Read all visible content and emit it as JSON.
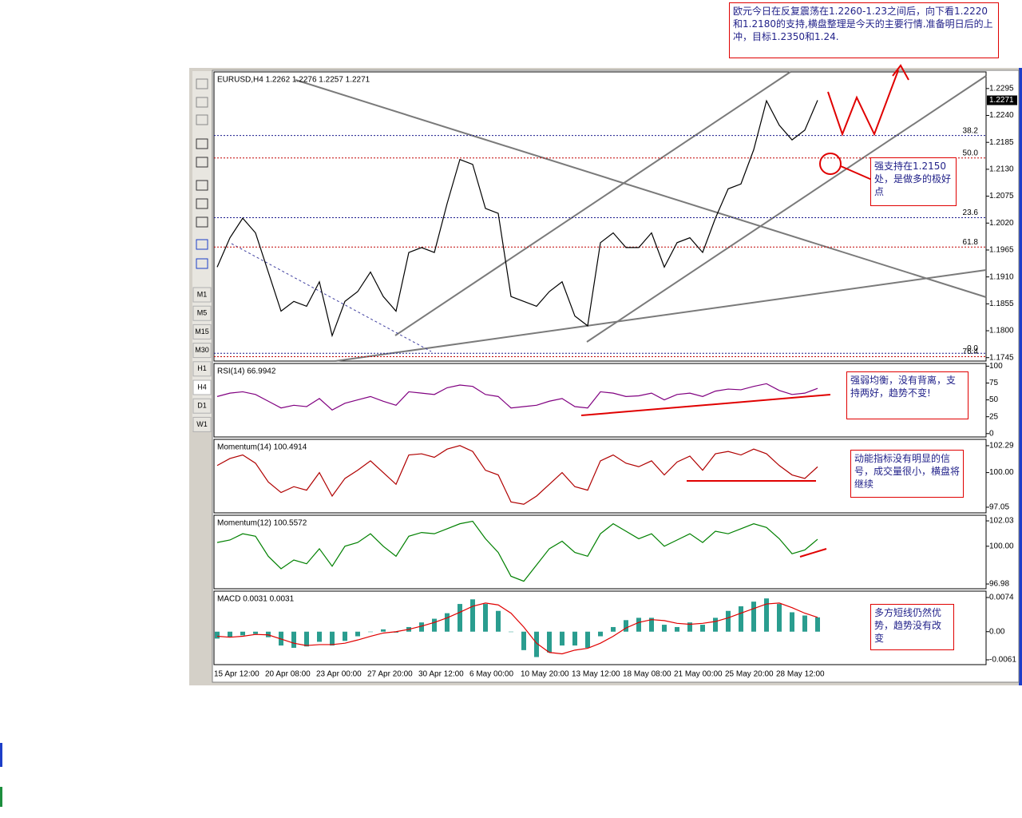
{
  "chart_data": [
    {
      "type": "line",
      "title": "EURUSD,H4  1.2262 1.2276 1.2257 1.2271",
      "color": "#000000",
      "values": [
        1.193,
        1.199,
        1.203,
        1.2,
        1.192,
        1.184,
        1.186,
        1.185,
        1.19,
        1.179,
        1.186,
        1.188,
        1.192,
        1.187,
        1.184,
        1.196,
        1.197,
        1.196,
        1.206,
        1.215,
        1.214,
        1.205,
        1.204,
        1.187,
        1.186,
        1.185,
        1.188,
        1.19,
        1.183,
        1.181,
        1.198,
        1.2,
        1.197,
        1.197,
        1.2,
        1.193,
        1.198,
        1.199,
        1.196,
        1.203,
        1.209,
        1.21,
        1.217,
        1.227,
        1.222,
        1.219,
        1.221,
        1.2271
      ],
      "ylim": [
        1.1738,
        1.2329
      ],
      "yticks": [
        1.2295,
        {
          "value": 1.224,
          "label": "1.2240"
        },
        1.2185,
        {
          "value": 1.213,
          "label": "1.2130"
        },
        1.2075,
        {
          "value": 1.202,
          "label": "1.2020"
        },
        1.1965,
        {
          "value": 1.191,
          "label": "1.1910"
        },
        1.1855,
        {
          "value": 1.18,
          "label": "1.1800"
        },
        1.1745
      ],
      "fib_levels": [
        {
          "value": 1.2199,
          "label": "38.2"
        },
        {
          "value": 1.2153,
          "label": "50.0"
        },
        {
          "value": 1.2031,
          "label": "23.6"
        },
        {
          "value": 1.1971,
          "label": "61.8"
        },
        {
          "value": 1.1754,
          "label": "0.0"
        },
        {
          "value": 1.1747,
          "label": "76.4"
        }
      ],
      "current_price": {
        "value": 1.2271,
        "label": "1.2271"
      }
    },
    {
      "type": "line",
      "title": "RSI(14) 66.9942",
      "color": "#800080",
      "values": [
        55,
        60,
        62,
        58,
        48,
        38,
        42,
        40,
        52,
        35,
        45,
        50,
        55,
        48,
        42,
        62,
        60,
        58,
        68,
        72,
        70,
        58,
        55,
        38,
        40,
        42,
        48,
        52,
        40,
        38,
        62,
        60,
        55,
        56,
        60,
        50,
        58,
        60,
        55,
        63,
        66,
        65,
        70,
        74,
        64,
        58,
        60,
        66.9942
      ],
      "ylim": [
        -5,
        104
      ],
      "yticks": [
        100,
        75,
        50,
        25,
        0
      ]
    },
    {
      "type": "line",
      "title": "Momentum(14) 100.4914",
      "color": "#b00000",
      "values": [
        100.6,
        101.2,
        101.5,
        100.8,
        99.2,
        98.3,
        98.8,
        98.5,
        100.0,
        98.0,
        99.5,
        100.2,
        101.0,
        100.0,
        99.0,
        101.5,
        101.6,
        101.3,
        102.0,
        102.3,
        101.8,
        100.2,
        99.8,
        97.5,
        97.3,
        98.0,
        99.0,
        100.0,
        98.8,
        98.5,
        101.0,
        101.5,
        100.8,
        100.5,
        101.0,
        99.8,
        100.9,
        101.4,
        100.2,
        101.6,
        101.8,
        101.5,
        102.0,
        101.6,
        100.6,
        99.8,
        99.5,
        100.4914
      ],
      "ylim": [
        96.57,
        102.83
      ],
      "yticks": [
        102.29,
        {
          "value": 100,
          "label": "100.00"
        },
        97.05
      ]
    },
    {
      "type": "line",
      "title": "Momentum(12) 100.5572",
      "color": "#008000",
      "values": [
        100.3,
        100.5,
        101.0,
        100.8,
        99.2,
        98.2,
        98.9,
        98.6,
        99.8,
        98.4,
        100.0,
        100.3,
        101.0,
        100.0,
        99.2,
        100.8,
        101.1,
        101.0,
        101.4,
        101.8,
        102.0,
        100.6,
        99.5,
        97.6,
        97.2,
        98.5,
        99.8,
        100.4,
        99.5,
        99.2,
        101.0,
        101.8,
        101.2,
        100.6,
        101.0,
        100.0,
        100.5,
        101.0,
        100.3,
        101.2,
        101.0,
        101.4,
        101.8,
        101.5,
        100.6,
        99.4,
        99.7,
        100.5572
      ],
      "ylim": [
        96.6,
        102.48
      ],
      "yticks": [
        102.03,
        {
          "value": 100,
          "label": "100.00"
        },
        96.98
      ]
    },
    {
      "type": "line",
      "title": "MACD  0.0031 0.0031",
      "categories": [
        "15 Apr 12:00",
        null,
        null,
        null,
        "20 Apr 08:00",
        null,
        null,
        null,
        "23 Apr 00:00",
        null,
        null,
        null,
        "27 Apr 20:00",
        null,
        null,
        null,
        "30 Apr 12:00",
        null,
        null,
        null,
        "6 May 00:00",
        null,
        null,
        null,
        "10 May 20:00",
        null,
        null,
        null,
        "13 May 12:00",
        null,
        null,
        null,
        "18 May 08:00",
        null,
        null,
        null,
        "21 May 00:00",
        null,
        null,
        null,
        "25 May 20:00",
        null,
        null,
        null,
        "28 May 12:00",
        null,
        null,
        null
      ],
      "series": [
        {
          "type": "bar",
          "color": "#2a9d8f",
          "values": [
            -0.0015,
            -0.0012,
            -0.0008,
            -0.0005,
            -0.0012,
            -0.003,
            -0.0035,
            -0.0032,
            -0.0022,
            -0.003,
            -0.002,
            -0.001,
            0,
            0.0005,
            -0.0002,
            0.001,
            0.002,
            0.0028,
            0.004,
            0.006,
            0.007,
            0.006,
            0.0045,
            0,
            -0.004,
            -0.0055,
            -0.0045,
            -0.003,
            -0.003,
            -0.0035,
            -0.001,
            0.001,
            0.0025,
            0.003,
            0.003,
            0.0015,
            0.001,
            0.002,
            0.0015,
            0.003,
            0.0045,
            0.0055,
            0.0065,
            0.0072,
            0.006,
            0.0042,
            0.0035,
            0.0031
          ]
        },
        {
          "type": "line",
          "color": "#e00000",
          "values": [
            -0.001,
            -0.0012,
            -0.001,
            -0.0006,
            -0.0007,
            -0.0016,
            -0.0025,
            -0.003,
            -0.0028,
            -0.0028,
            -0.0025,
            -0.0018,
            -0.001,
            -0.0003,
            0,
            0.0005,
            0.0012,
            0.002,
            0.003,
            0.0042,
            0.0055,
            0.0062,
            0.0058,
            0.004,
            0.001,
            -0.0025,
            -0.0045,
            -0.0048,
            -0.004,
            -0.0036,
            -0.0025,
            -0.001,
            0.0008,
            0.002,
            0.0026,
            0.0024,
            0.0018,
            0.0016,
            0.0018,
            0.0022,
            0.003,
            0.004,
            0.005,
            0.006,
            0.0062,
            0.0052,
            0.004,
            0.0031
          ]
        }
      ],
      "ylim": [
        -0.00714,
        0.00878
      ],
      "yticks": [
        0.0074,
        {
          "value": 0,
          "label": "0.00"
        },
        -0.0061
      ]
    }
  ],
  "toolbar": {
    "timeframes": [
      "M1",
      "M5",
      "M15",
      "M30",
      "H1",
      "H4",
      "D1",
      "W1"
    ]
  },
  "annotations": [
    "欧元今日在反复震荡在1.2260-1.23之间后，向下看1.2220和1.2180的支持,横盘整理是今天的主要行情.准备明日后的上冲，目标1.2350和1.24.",
    "强支持在1.2150处，是做多的极好点",
    "强弱均衡，没有背离，支持两好，趋势不变!",
    "动能指标没有明显的信号，成交量很小，横盘将继续",
    "多方短线仍然优势，趋势没有改变"
  ]
}
